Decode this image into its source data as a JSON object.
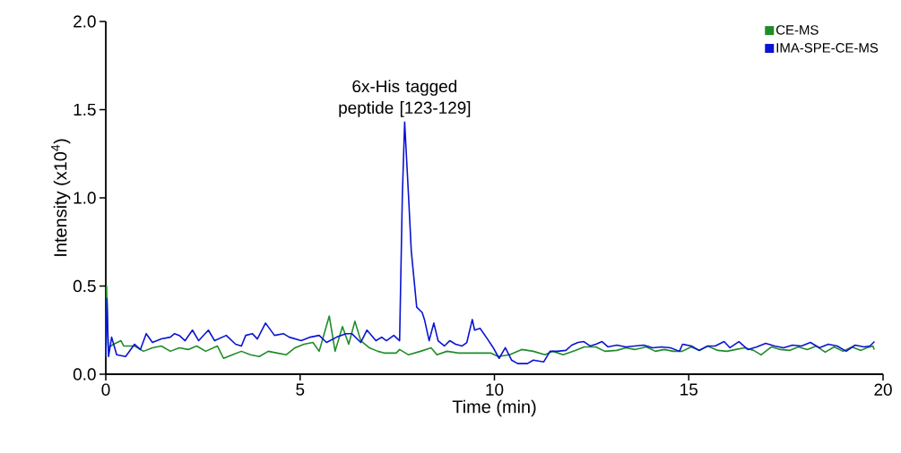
{
  "chart_data": {
    "type": "line",
    "xlabel": "Time (min)",
    "ylabel": "Intensity (x10$^{4}$)",
    "xlim": [
      0,
      20
    ],
    "ylim": [
      0,
      2.0
    ],
    "xticks": [
      0,
      5,
      10,
      15,
      20
    ],
    "yticks": [
      {
        "value": 0,
        "label": "0.0"
      },
      {
        "value": 0.5,
        "label": "0.5"
      },
      {
        "value": 1.0,
        "label": "1.0"
      },
      {
        "value": 1.5,
        "label": "1.5"
      },
      {
        "value": 2.0,
        "label": "2.0"
      }
    ],
    "legend": "top right",
    "grid": false,
    "marker": "none",
    "line_style": "solid",
    "annotations": [
      {
        "text": "6x-His tagged peptide [123-129]",
        "x": 7.69,
        "y": 1.43
      }
    ],
    "series": [
      {
        "name": "CE-MS",
        "color": "#1e8c28",
        "x": [
          0,
          0.02,
          0.06,
          0.2,
          0.39,
          0.46,
          0.74,
          0.97,
          1.2,
          1.43,
          1.66,
          1.89,
          2.12,
          2.34,
          2.57,
          2.87,
          3.03,
          3.26,
          3.49,
          3.72,
          3.95,
          4.18,
          4.41,
          4.64,
          4.87,
          5.1,
          5.33,
          5.49,
          5.75,
          5.9,
          6.09,
          6.25,
          6.41,
          6.56,
          6.78,
          7.0,
          7.16,
          7.47,
          7.56,
          7.79,
          8.1,
          8.37,
          8.52,
          8.78,
          9.08,
          9.4,
          9.63,
          9.9,
          10.1,
          10.39,
          10.7,
          11.0,
          11.3,
          11.5,
          11.77,
          12.08,
          12.31,
          12.61,
          12.84,
          13.15,
          13.38,
          13.61,
          13.91,
          14.14,
          14.37,
          14.6,
          14.83,
          15.06,
          15.29,
          15.48,
          15.75,
          15.98,
          16.21,
          16.44,
          16.67,
          16.86,
          17.13,
          17.36,
          17.59,
          17.82,
          18.05,
          18.28,
          18.51,
          18.74,
          18.97,
          19.2,
          19.43,
          19.58,
          19.74,
          19.77
        ],
        "values": [
          0.1,
          0.5,
          0.15,
          0.17,
          0.19,
          0.16,
          0.16,
          0.13,
          0.15,
          0.16,
          0.13,
          0.15,
          0.14,
          0.16,
          0.13,
          0.16,
          0.09,
          0.11,
          0.13,
          0.11,
          0.1,
          0.13,
          0.12,
          0.11,
          0.15,
          0.17,
          0.18,
          0.13,
          0.33,
          0.13,
          0.27,
          0.17,
          0.3,
          0.19,
          0.15,
          0.13,
          0.12,
          0.12,
          0.14,
          0.11,
          0.13,
          0.15,
          0.11,
          0.13,
          0.12,
          0.12,
          0.12,
          0.12,
          0.1,
          0.11,
          0.14,
          0.13,
          0.11,
          0.13,
          0.11,
          0.135,
          0.155,
          0.155,
          0.13,
          0.135,
          0.15,
          0.14,
          0.155,
          0.13,
          0.14,
          0.13,
          0.13,
          0.155,
          0.135,
          0.16,
          0.135,
          0.13,
          0.14,
          0.15,
          0.135,
          0.11,
          0.155,
          0.14,
          0.135,
          0.155,
          0.14,
          0.16,
          0.125,
          0.155,
          0.13,
          0.155,
          0.135,
          0.15,
          0.16,
          0.14
        ]
      },
      {
        "name": "IMA-SPE-CE-MS",
        "color": "#0a14d2",
        "x": [
          0,
          0.03,
          0.07,
          0.15,
          0.28,
          0.51,
          0.74,
          0.89,
          1.04,
          1.2,
          1.43,
          1.66,
          1.77,
          1.89,
          2.04,
          2.23,
          2.39,
          2.64,
          2.8,
          3.1,
          3.34,
          3.49,
          3.6,
          3.77,
          3.9,
          4.11,
          4.34,
          4.57,
          4.72,
          5.03,
          5.26,
          5.49,
          5.68,
          5.94,
          6.18,
          6.33,
          6.56,
          6.72,
          6.95,
          7.1,
          7.22,
          7.41,
          7.56,
          7.63,
          7.69,
          7.79,
          7.86,
          8.0,
          8.14,
          8.2,
          8.32,
          8.44,
          8.55,
          8.71,
          8.85,
          9.0,
          9.17,
          9.29,
          9.43,
          9.49,
          9.63,
          9.82,
          9.97,
          10.12,
          10.28,
          10.44,
          10.6,
          10.85,
          11.0,
          11.27,
          11.43,
          11.62,
          11.84,
          11.99,
          12.15,
          12.3,
          12.46,
          12.61,
          12.77,
          12.92,
          13.15,
          13.38,
          13.61,
          13.84,
          14.07,
          14.3,
          14.53,
          14.76,
          14.84,
          15.07,
          15.26,
          15.49,
          15.68,
          15.91,
          16.06,
          16.29,
          16.52,
          16.75,
          16.98,
          17.21,
          17.44,
          17.67,
          17.9,
          18.13,
          18.36,
          18.59,
          18.82,
          19.05,
          19.28,
          19.51,
          19.66,
          19.78
        ],
        "values": [
          0.1,
          0.43,
          0.1,
          0.21,
          0.11,
          0.1,
          0.17,
          0.14,
          0.23,
          0.18,
          0.2,
          0.21,
          0.23,
          0.22,
          0.19,
          0.25,
          0.19,
          0.25,
          0.19,
          0.22,
          0.17,
          0.16,
          0.22,
          0.23,
          0.2,
          0.29,
          0.22,
          0.23,
          0.21,
          0.19,
          0.21,
          0.22,
          0.18,
          0.21,
          0.23,
          0.23,
          0.18,
          0.25,
          0.19,
          0.21,
          0.19,
          0.22,
          0.19,
          1.01,
          1.43,
          1.01,
          0.7,
          0.38,
          0.35,
          0.31,
          0.19,
          0.29,
          0.19,
          0.16,
          0.19,
          0.17,
          0.16,
          0.18,
          0.31,
          0.25,
          0.26,
          0.2,
          0.15,
          0.09,
          0.15,
          0.08,
          0.06,
          0.06,
          0.08,
          0.07,
          0.13,
          0.13,
          0.135,
          0.165,
          0.18,
          0.185,
          0.16,
          0.17,
          0.185,
          0.155,
          0.165,
          0.155,
          0.16,
          0.165,
          0.15,
          0.155,
          0.15,
          0.13,
          0.17,
          0.16,
          0.135,
          0.16,
          0.16,
          0.185,
          0.15,
          0.185,
          0.14,
          0.155,
          0.175,
          0.16,
          0.15,
          0.165,
          0.16,
          0.18,
          0.15,
          0.17,
          0.16,
          0.13,
          0.165,
          0.155,
          0.16,
          0.185
        ]
      }
    ]
  }
}
